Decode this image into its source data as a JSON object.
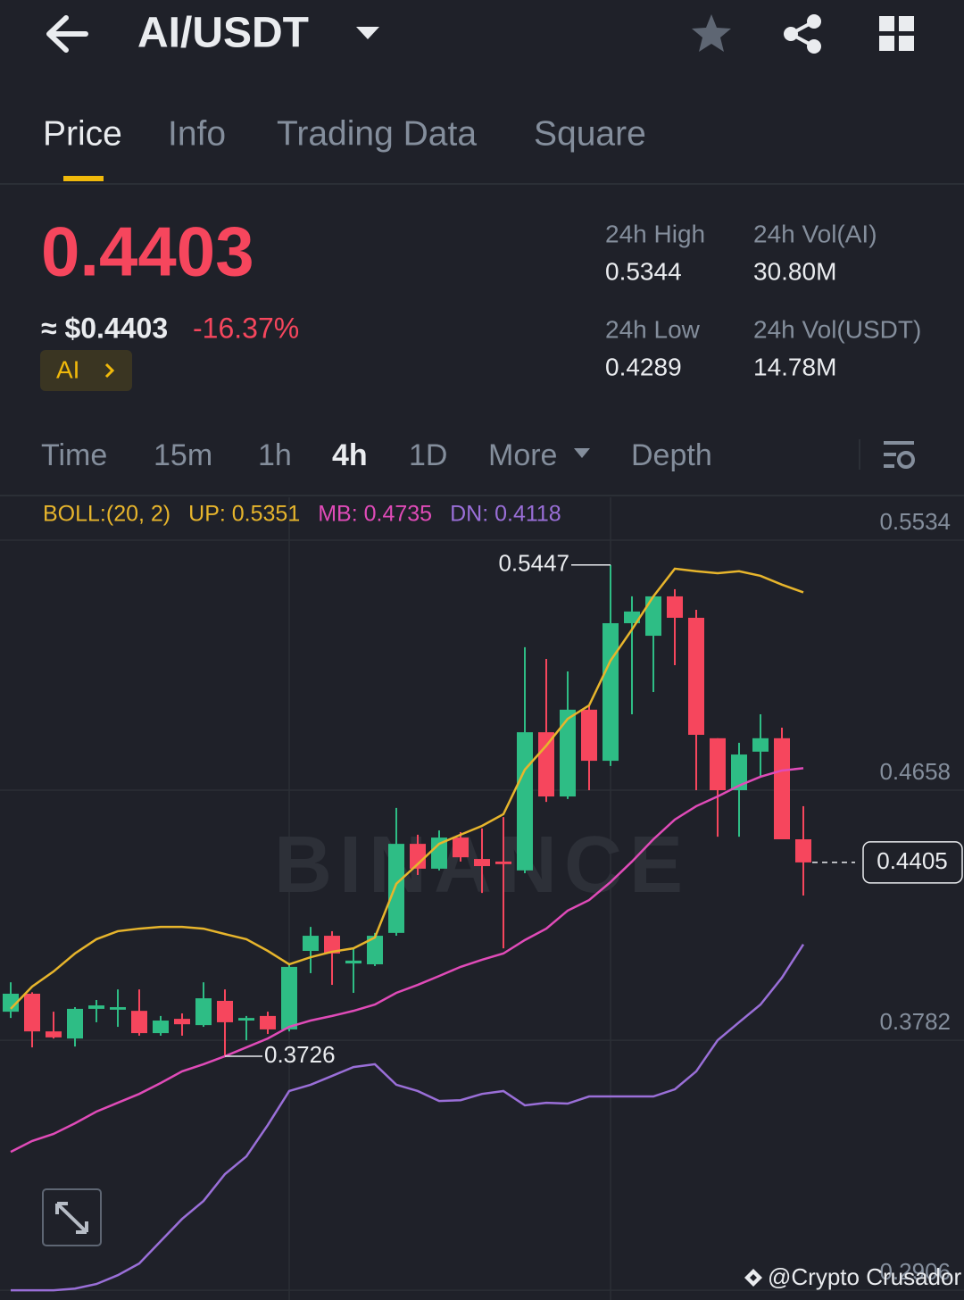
{
  "header": {
    "title": "AI/USDT"
  },
  "tabs": [
    "Price",
    "Info",
    "Trading Data",
    "Square"
  ],
  "price": {
    "last": "0.4403",
    "approx": "≈ $0.4403",
    "change": "-16.37%",
    "tag": "AI"
  },
  "stats": [
    {
      "label": "24h High",
      "value": "0.5344"
    },
    {
      "label": "24h Vol(AI)",
      "value": "30.80M"
    },
    {
      "label": "24h Low",
      "value": "0.4289"
    },
    {
      "label": "24h Vol(USDT)",
      "value": "14.78M"
    }
  ],
  "intervals": [
    "Time",
    "15m",
    "1h",
    "4h",
    "1D",
    "More",
    "Depth"
  ],
  "chart_data": {
    "type": "candlestick",
    "categories": [
      null,
      null,
      null,
      null,
      null,
      null,
      null,
      null,
      null,
      null,
      null,
      null,
      null,
      null,
      null,
      null,
      null,
      null,
      null,
      null,
      null,
      null,
      null,
      null,
      null,
      null,
      null,
      null,
      null,
      null,
      null,
      null,
      null,
      null,
      null,
      null,
      null,
      null
    ],
    "open": [
      0.3882,
      0.3945,
      0.3813,
      0.3788,
      0.3892,
      0.3889,
      0.3885,
      0.3807,
      0.3857,
      0.3835,
      0.392,
      0.3851,
      0.3867,
      0.382,
      0.4095,
      0.4148,
      0.4051,
      0.4048,
      0.4158,
      0.447,
      0.4383,
      0.4492,
      0.4417,
      0.4408,
      0.4377,
      0.4861,
      0.4636,
      0.494,
      0.4761,
      0.5243,
      0.5199,
      0.5337,
      0.5262,
      0.484,
      0.4658,
      0.4793,
      0.484,
      0.4486
    ],
    "high": [
      0.3985,
      0.395,
      0.3882,
      0.3898,
      0.3923,
      0.396,
      0.396,
      0.3867,
      0.3876,
      0.3985,
      0.396,
      0.3867,
      0.3882,
      0.4048,
      0.4179,
      0.4164,
      0.4104,
      0.4158,
      0.4596,
      0.4502,
      0.4517,
      0.4511,
      0.4524,
      0.4564,
      0.5159,
      0.5118,
      0.5074,
      0.4955,
      0.5447,
      0.5337,
      0.5337,
      0.5362,
      0.529,
      0.484,
      0.4824,
      0.4924,
      0.4877,
      0.4602
    ],
    "low": [
      0.386,
      0.3757,
      0.3788,
      0.376,
      0.3845,
      0.3829,
      0.3798,
      0.3798,
      0.3798,
      0.3829,
      0.3726,
      0.3782,
      0.3804,
      0.3813,
      0.4017,
      0.3976,
      0.3948,
      0.4042,
      0.4148,
      0.4361,
      0.4377,
      0.4408,
      0.4298,
      0.4104,
      0.4367,
      0.4617,
      0.4627,
      0.4658,
      0.4743,
      0.4924,
      0.5002,
      0.5096,
      0.4658,
      0.4495,
      0.4495,
      0.4705,
      0.4486,
      0.4289
    ],
    "close": [
      0.3945,
      0.3813,
      0.3792,
      0.3892,
      0.3904,
      0.3898,
      0.3807,
      0.3851,
      0.3838,
      0.3929,
      0.3845,
      0.386,
      0.382,
      0.4039,
      0.4148,
      0.4086,
      0.4061,
      0.4148,
      0.447,
      0.4383,
      0.4492,
      0.4423,
      0.4392,
      0.4399,
      0.4861,
      0.4636,
      0.494,
      0.4761,
      0.5243,
      0.5284,
      0.5337,
      0.5262,
      0.4852,
      0.4658,
      0.4783,
      0.484,
      0.4486,
      0.4405
    ],
    "up_color": "#2ebd85",
    "down_color": "#f6465d",
    "series": [
      {
        "color": "#e7b52c",
        "values": [
          0.3892,
          0.397,
          0.4023,
          0.4086,
          0.4136,
          0.4164,
          0.4173,
          0.4179,
          0.4179,
          0.4173,
          0.4154,
          0.4136,
          0.4095,
          0.4048,
          0.4073,
          0.4092,
          0.4104,
          0.4142,
          0.433,
          0.4399,
          0.447,
          0.4502,
          0.4533,
          0.4574,
          0.473,
          0.4814,
          0.4908,
          0.4955,
          0.5112,
          0.5221,
          0.5337,
          0.5434,
          0.5425,
          0.5418,
          0.5425,
          0.5409,
          0.5378,
          0.5351
        ]
      },
      {
        "color": "#e04bb8",
        "values": [
          0.3391,
          0.3429,
          0.3454,
          0.3491,
          0.3532,
          0.3563,
          0.3594,
          0.3632,
          0.3673,
          0.3698,
          0.3726,
          0.3757,
          0.3788,
          0.3829,
          0.3851,
          0.3867,
          0.3885,
          0.3907,
          0.3948,
          0.3976,
          0.4007,
          0.4039,
          0.4064,
          0.4086,
          0.4133,
          0.4173,
          0.4236,
          0.4273,
          0.4336,
          0.4408,
          0.4486,
          0.4555,
          0.4602,
          0.4636,
          0.4674,
          0.4705,
          0.4727,
          0.4735
        ]
      },
      {
        "color": "#9a6fd8",
        "values": [
          0.2906,
          0.2906,
          0.2906,
          0.2912,
          0.2928,
          0.2959,
          0.3,
          0.3078,
          0.3156,
          0.3219,
          0.3313,
          0.3375,
          0.3485,
          0.3604,
          0.3626,
          0.3657,
          0.3688,
          0.3698,
          0.3626,
          0.3604,
          0.3569,
          0.3572,
          0.3594,
          0.3604,
          0.3554,
          0.3563,
          0.356,
          0.3585,
          0.3585,
          0.3585,
          0.3585,
          0.361,
          0.3673,
          0.3782,
          0.3845,
          0.3907,
          0.4001,
          0.4118
        ]
      }
    ],
    "legend": [
      {
        "label": "BOLL:(20, 2)",
        "color": "#e7b52c"
      },
      {
        "label": "UP: 0.5351",
        "color": "#e7b52c"
      },
      {
        "label": "MB: 0.4735",
        "color": "#e04bb8"
      },
      {
        "label": "DN: 0.4118",
        "color": "#9a6fd8"
      }
    ],
    "ylim": [
      0.2872,
      0.5684
    ],
    "yticks": [
      0.5534,
      0.4658,
      0.3782,
      0.2906
    ],
    "grid": true
  },
  "watermark": "BINANCE",
  "credit": "@Crypto Crusador"
}
